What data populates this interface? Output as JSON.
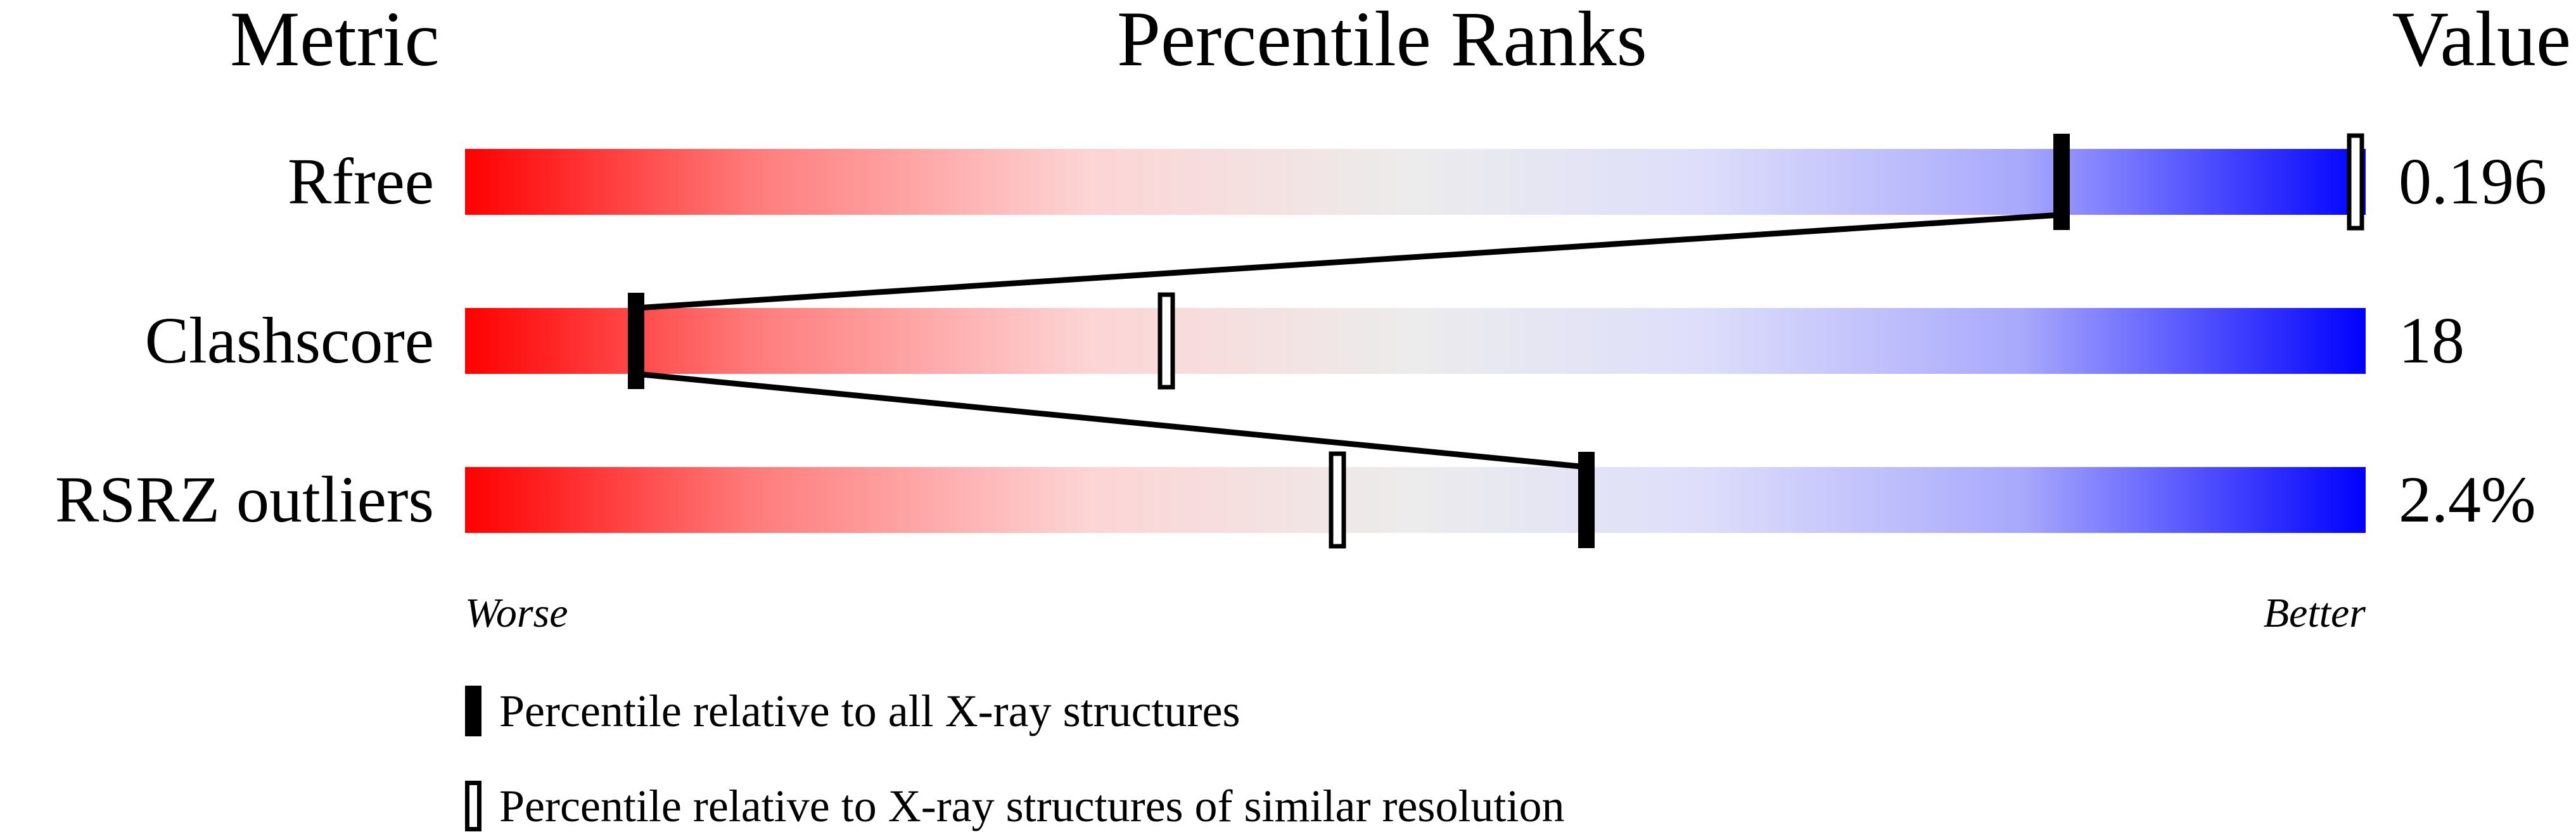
{
  "chart_data": {
    "type": "percentile-bar",
    "headers": {
      "metric": "Metric",
      "ranks": "Percentile Ranks",
      "value": "Value"
    },
    "xlim": [
      0,
      100
    ],
    "colors": {
      "worse": "#ff0000",
      "middle": "#ececec",
      "better": "#0000ff"
    },
    "rows": [
      {
        "metric": "Rfree",
        "value": "0.196",
        "percentile_all": 84,
        "percentile_similar": 100
      },
      {
        "metric": "Clashscore",
        "value": "18",
        "percentile_all": 9,
        "percentile_similar": 37
      },
      {
        "metric": "RSRZ outliers",
        "value": "2.4%",
        "percentile_all": 59,
        "percentile_similar": 46
      }
    ],
    "axis_labels": {
      "left": "Worse",
      "right": "Better"
    },
    "legend": [
      {
        "marker": "filled",
        "label": "Percentile relative to all X-ray structures"
      },
      {
        "marker": "open",
        "label": "Percentile relative to X-ray structures of similar resolution"
      }
    ]
  }
}
